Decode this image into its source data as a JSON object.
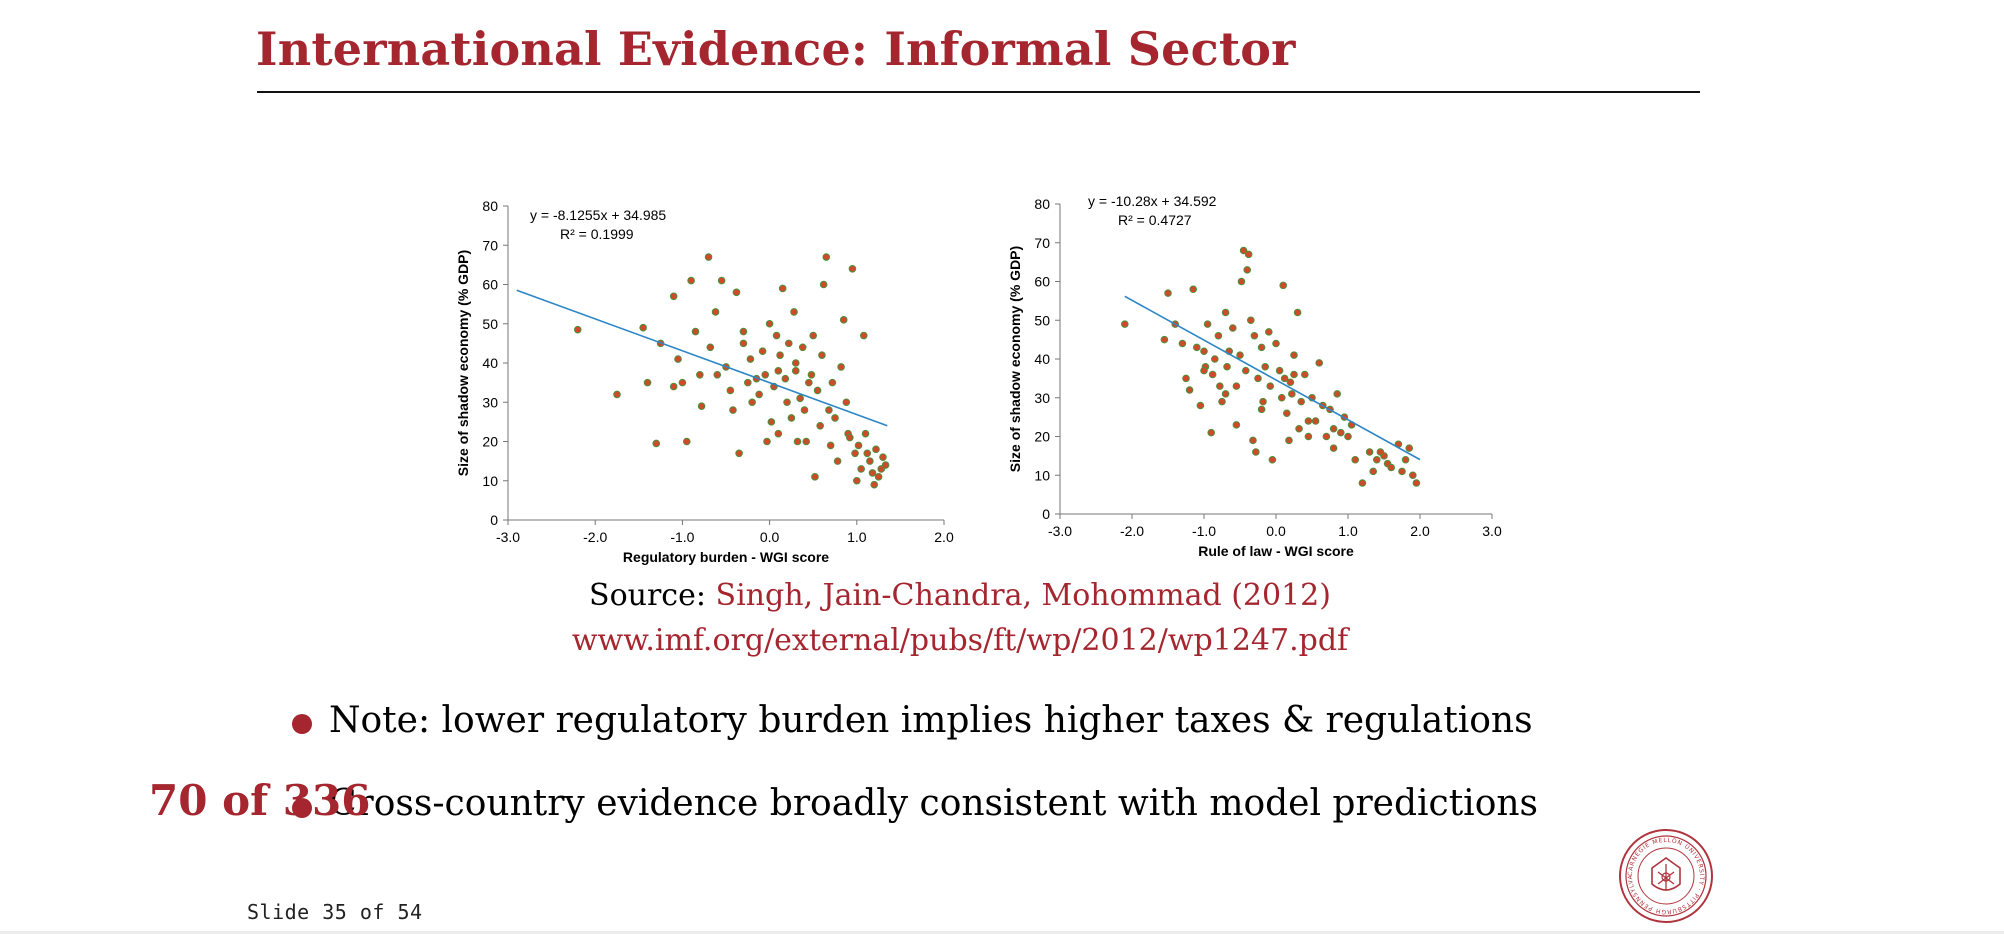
{
  "slide": {
    "title": "International Evidence: Informal Sector",
    "source_label": "Source:",
    "source_link": "Singh, Jain-Chandra, Mohommad (2012)",
    "source_url": "www.imf.org/external/pubs/ft/wp/2012/wp1247.pdf",
    "bullets": [
      "Note: lower regulatory burden implies higher taxes & regulations",
      "Cross-country evidence broadly consistent with model predictions"
    ],
    "page_counter": "70 of 336",
    "slide_counter": "Slide 35 of 54",
    "seal_text": "CARNEGIE MELLON UNIVERSITY · PITTSBURGH PENNSYLVANIA 1900"
  },
  "colors": {
    "accent": "#a5262f",
    "trendline": "#2b86c5",
    "point_fill": "#cf4a2b",
    "point_edge": "#4f8f3a"
  },
  "chart_data": [
    {
      "type": "scatter",
      "xlabel": "Regulatory burden - WGI score",
      "ylabel": "Size of shadow economy (% GDP)",
      "xlim": [
        -3.0,
        2.0
      ],
      "ylim": [
        0,
        80
      ],
      "xticks": [
        "-3.0",
        "-2.0",
        "-1.0",
        "0.0",
        "1.0",
        "2.0"
      ],
      "yticks": [
        "0",
        "10",
        "20",
        "30",
        "40",
        "50",
        "60",
        "70",
        "80"
      ],
      "equation": "y = -8.1255x + 34.985",
      "r_squared": "R² = 0.1999",
      "trendline": {
        "slope": -8.1255,
        "intercept": 34.985,
        "x_range": [
          -2.9,
          1.35
        ]
      },
      "points": [
        [
          -2.2,
          48.5
        ],
        [
          -1.75,
          32
        ],
        [
          -1.45,
          49
        ],
        [
          -1.4,
          35
        ],
        [
          -1.25,
          45
        ],
        [
          -1.3,
          19.5
        ],
        [
          -1.1,
          57
        ],
        [
          -1.05,
          41
        ],
        [
          -1.0,
          35
        ],
        [
          -0.95,
          20
        ],
        [
          -0.9,
          61
        ],
        [
          -0.85,
          48
        ],
        [
          -0.8,
          37
        ],
        [
          -0.78,
          29
        ],
        [
          -0.7,
          67
        ],
        [
          -0.68,
          44
        ],
        [
          -0.62,
          53
        ],
        [
          -0.55,
          61
        ],
        [
          -0.5,
          39
        ],
        [
          -0.45,
          33
        ],
        [
          -0.42,
          28
        ],
        [
          -0.38,
          58
        ],
        [
          -0.35,
          17
        ],
        [
          -0.3,
          45
        ],
        [
          -0.25,
          35
        ],
        [
          -0.22,
          41
        ],
        [
          -0.2,
          30
        ],
        [
          -0.15,
          36
        ],
        [
          -0.12,
          32
        ],
        [
          -0.08,
          43
        ],
        [
          -0.05,
          37
        ],
        [
          -0.03,
          20
        ],
        [
          0.0,
          50
        ],
        [
          0.02,
          25
        ],
        [
          0.05,
          34
        ],
        [
          0.08,
          47
        ],
        [
          0.1,
          22
        ],
        [
          0.12,
          42
        ],
        [
          0.15,
          59
        ],
        [
          0.18,
          36
        ],
        [
          0.2,
          30
        ],
        [
          0.22,
          45
        ],
        [
          0.25,
          26
        ],
        [
          0.28,
          53
        ],
        [
          0.3,
          40
        ],
        [
          0.32,
          20
        ],
        [
          0.35,
          31
        ],
        [
          0.38,
          44
        ],
        [
          0.4,
          28
        ],
        [
          0.42,
          20
        ],
        [
          0.45,
          35
        ],
        [
          0.48,
          37
        ],
        [
          0.5,
          47
        ],
        [
          0.52,
          11
        ],
        [
          0.55,
          33
        ],
        [
          0.58,
          24
        ],
        [
          0.6,
          42
        ],
        [
          0.62,
          60
        ],
        [
          0.65,
          67
        ],
        [
          0.68,
          28
        ],
        [
          0.7,
          19
        ],
        [
          0.72,
          35
        ],
        [
          0.75,
          26
        ],
        [
          0.78,
          15
        ],
        [
          0.82,
          39
        ],
        [
          0.85,
          51
        ],
        [
          0.88,
          30
        ],
        [
          0.9,
          22
        ],
        [
          0.92,
          21
        ],
        [
          0.95,
          64
        ],
        [
          0.98,
          17
        ],
        [
          1.0,
          10
        ],
        [
          1.02,
          19
        ],
        [
          1.05,
          13
        ],
        [
          1.08,
          47
        ],
        [
          1.1,
          22
        ],
        [
          1.12,
          17
        ],
        [
          1.15,
          15
        ],
        [
          1.18,
          12
        ],
        [
          1.2,
          9
        ],
        [
          1.22,
          18
        ],
        [
          1.25,
          11
        ],
        [
          1.28,
          13
        ],
        [
          1.3,
          16
        ],
        [
          1.33,
          14
        ],
        [
          -1.1,
          34
        ],
        [
          -0.6,
          37
        ],
        [
          0.3,
          38
        ],
        [
          -0.3,
          48
        ],
        [
          0.1,
          38
        ]
      ]
    },
    {
      "type": "scatter",
      "xlabel": "Rule of law - WGI score",
      "ylabel": "Size of shadow economy (% GDP)",
      "xlim": [
        -3.0,
        3.0
      ],
      "ylim": [
        0,
        80
      ],
      "xticks": [
        "-3.0",
        "-2.0",
        "-1.0",
        "0.0",
        "1.0",
        "2.0",
        "3.0"
      ],
      "yticks": [
        "0",
        "10",
        "20",
        "30",
        "40",
        "50",
        "60",
        "70",
        "80"
      ],
      "equation": "y = -10.28x + 34.592",
      "r_squared": "R² = 0.4727",
      "trendline": {
        "slope": -10.28,
        "intercept": 34.592,
        "x_range": [
          -2.1,
          2.0
        ]
      },
      "points": [
        [
          -2.1,
          49
        ],
        [
          -1.55,
          45
        ],
        [
          -1.5,
          57
        ],
        [
          -1.4,
          49
        ],
        [
          -1.3,
          44
        ],
        [
          -1.25,
          35
        ],
        [
          -1.2,
          32
        ],
        [
          -1.15,
          58
        ],
        [
          -1.1,
          43
        ],
        [
          -1.05,
          28
        ],
        [
          -1.0,
          42
        ],
        [
          -0.98,
          38
        ],
        [
          -0.95,
          49
        ],
        [
          -0.9,
          21
        ],
        [
          -0.88,
          36
        ],
        [
          -0.85,
          40
        ],
        [
          -0.8,
          46
        ],
        [
          -0.78,
          33
        ],
        [
          -0.75,
          29
        ],
        [
          -0.7,
          52
        ],
        [
          -0.68,
          38
        ],
        [
          -0.65,
          42
        ],
        [
          -0.6,
          48
        ],
        [
          -0.55,
          33
        ],
        [
          -0.5,
          41
        ],
        [
          -0.48,
          60
        ],
        [
          -0.45,
          68
        ],
        [
          -0.42,
          37
        ],
        [
          -0.4,
          63
        ],
        [
          -0.38,
          67
        ],
        [
          -0.35,
          50
        ],
        [
          -0.32,
          19
        ],
        [
          -0.3,
          46
        ],
        [
          -0.28,
          16
        ],
        [
          -0.25,
          35
        ],
        [
          -0.2,
          43
        ],
        [
          -0.18,
          29
        ],
        [
          -0.15,
          38
        ],
        [
          -0.1,
          47
        ],
        [
          -0.08,
          33
        ],
        [
          -0.05,
          14
        ],
        [
          0.0,
          44
        ],
        [
          0.05,
          37
        ],
        [
          0.08,
          30
        ],
        [
          0.1,
          59
        ],
        [
          0.12,
          35
        ],
        [
          0.15,
          26
        ],
        [
          0.18,
          19
        ],
        [
          0.2,
          34
        ],
        [
          0.22,
          31
        ],
        [
          0.25,
          41
        ],
        [
          0.3,
          52
        ],
        [
          0.32,
          22
        ],
        [
          0.35,
          29
        ],
        [
          0.4,
          36
        ],
        [
          0.45,
          20
        ],
        [
          0.5,
          30
        ],
        [
          0.55,
          24
        ],
        [
          0.6,
          39
        ],
        [
          0.65,
          28
        ],
        [
          0.7,
          20
        ],
        [
          0.75,
          27
        ],
        [
          0.8,
          17
        ],
        [
          0.85,
          31
        ],
        [
          0.9,
          21
        ],
        [
          0.95,
          25
        ],
        [
          1.0,
          20
        ],
        [
          1.05,
          23
        ],
        [
          1.1,
          14
        ],
        [
          1.2,
          8
        ],
        [
          1.3,
          16
        ],
        [
          1.35,
          11
        ],
        [
          1.4,
          14
        ],
        [
          1.5,
          15
        ],
        [
          1.55,
          13
        ],
        [
          1.6,
          12
        ],
        [
          1.7,
          18
        ],
        [
          1.75,
          11
        ],
        [
          1.8,
          14
        ],
        [
          1.85,
          17
        ],
        [
          1.9,
          10
        ],
        [
          1.95,
          8
        ],
        [
          -0.7,
          31
        ],
        [
          -0.2,
          27
        ],
        [
          0.45,
          24
        ],
        [
          -1.0,
          37
        ],
        [
          0.25,
          36
        ],
        [
          -0.55,
          23
        ],
        [
          1.45,
          16
        ],
        [
          0.8,
          22
        ]
      ]
    }
  ]
}
